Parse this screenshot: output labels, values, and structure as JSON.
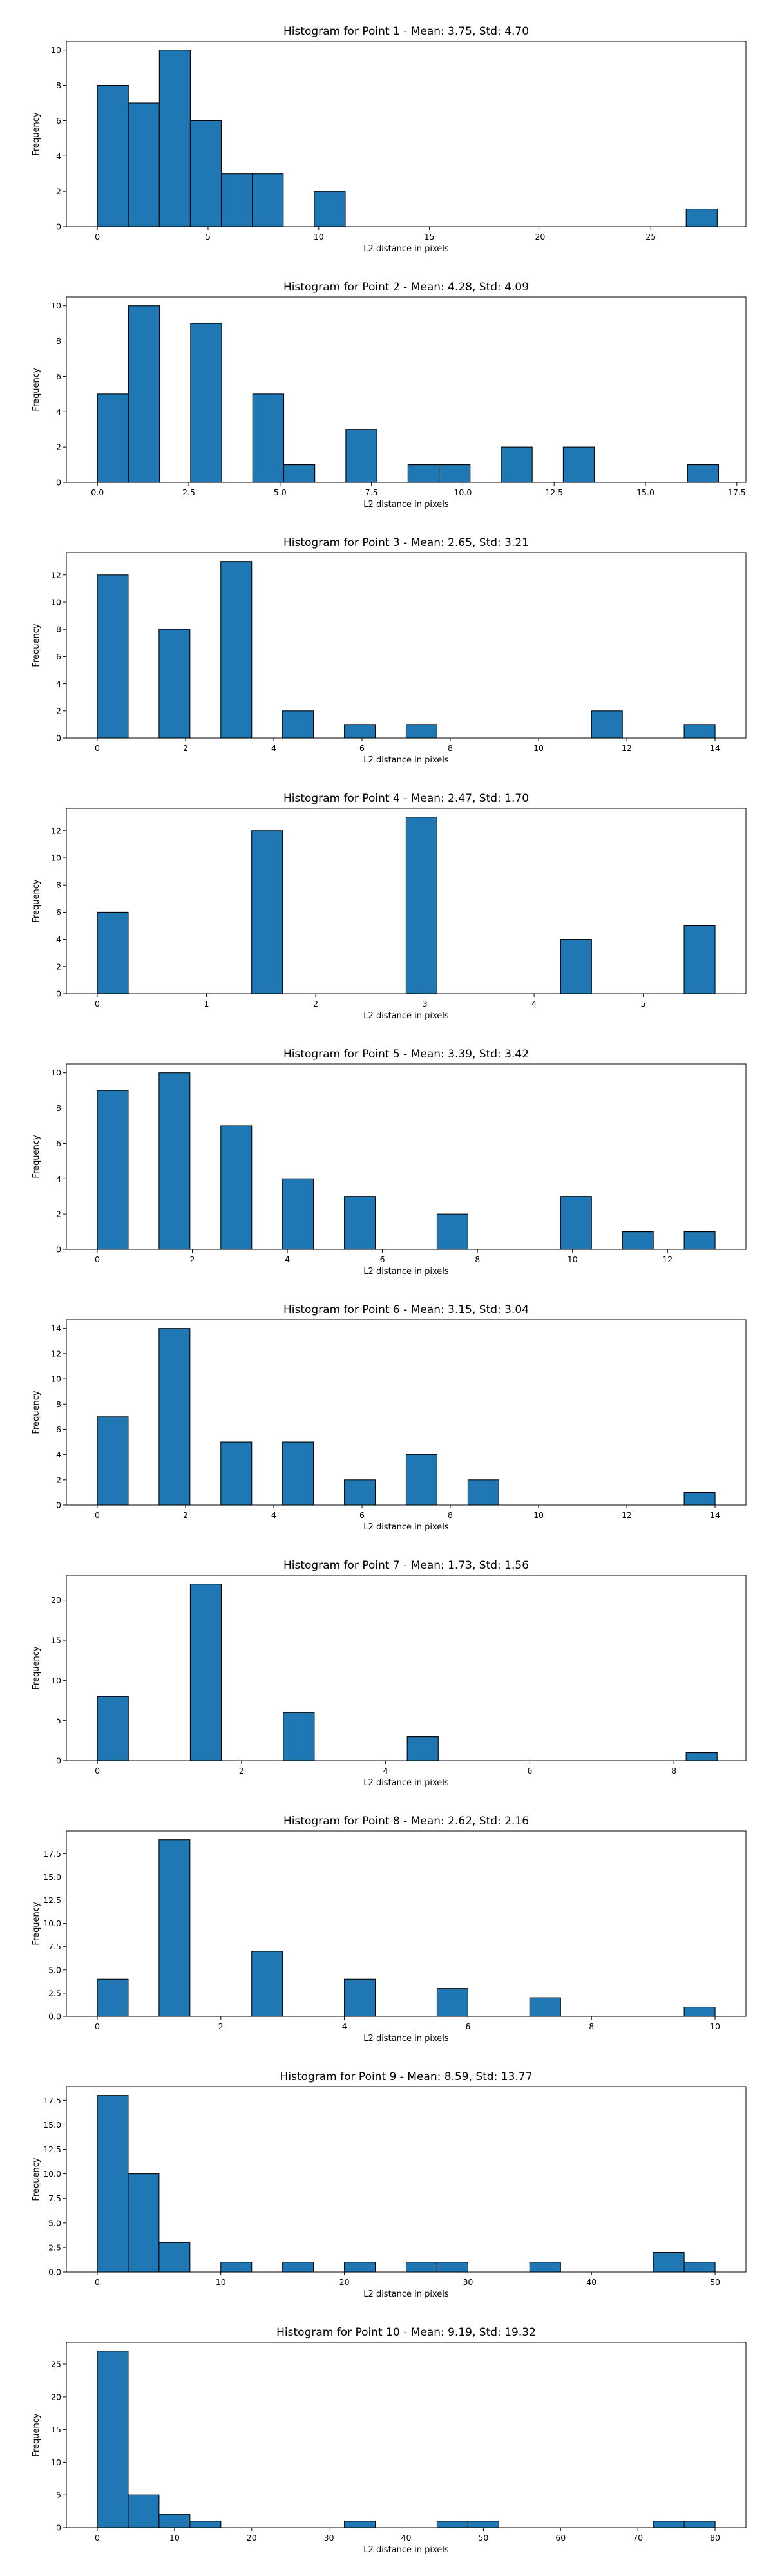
{
  "chart_data": [
    {
      "type": "bar",
      "title": "Histogram for Point 1 - Mean: 3.75, Std: 4.70",
      "xlabel": "L2 distance in pixels",
      "ylabel": "Frequency",
      "xlim": [
        -1.4,
        29.3
      ],
      "ylim": [
        0,
        10.5
      ],
      "xticks": [
        {
          "v": 0,
          "label": "0"
        },
        {
          "v": 5,
          "label": "5"
        },
        {
          "v": 10,
          "label": "10"
        },
        {
          "v": 15,
          "label": "15"
        },
        {
          "v": 20,
          "label": "20"
        },
        {
          "v": 25,
          "label": "25"
        }
      ],
      "yticks": [
        {
          "v": 0,
          "label": "0"
        },
        {
          "v": 2,
          "label": "2"
        },
        {
          "v": 4,
          "label": "4"
        },
        {
          "v": 6,
          "label": "6"
        },
        {
          "v": 8,
          "label": "8"
        },
        {
          "v": 10,
          "label": "10"
        }
      ],
      "bars": [
        {
          "x0": 0,
          "x1": 1.4,
          "value": 8
        },
        {
          "x0": 1.4,
          "x1": 2.8,
          "value": 7
        },
        {
          "x0": 2.8,
          "x1": 4.2,
          "value": 10
        },
        {
          "x0": 4.2,
          "x1": 5.6,
          "value": 6
        },
        {
          "x0": 5.6,
          "x1": 7.0,
          "value": 3
        },
        {
          "x0": 7.0,
          "x1": 8.4,
          "value": 3
        },
        {
          "x0": 9.8,
          "x1": 11.2,
          "value": 2
        },
        {
          "x0": 26.6,
          "x1": 28.0,
          "value": 1
        }
      ]
    },
    {
      "type": "bar",
      "title": "Histogram for Point 2 - Mean: 4.28, Std: 4.09",
      "xlabel": "L2 distance in pixels",
      "ylabel": "Frequency",
      "xlim": [
        -0.85,
        17.75
      ],
      "ylim": [
        0,
        10.5
      ],
      "xticks": [
        {
          "v": 0,
          "label": "0.0"
        },
        {
          "v": 2.5,
          "label": "2.5"
        },
        {
          "v": 5,
          "label": "5.0"
        },
        {
          "v": 7.5,
          "label": "7.5"
        },
        {
          "v": 10,
          "label": "10.0"
        },
        {
          "v": 12.5,
          "label": "12.5"
        },
        {
          "v": 15,
          "label": "15.0"
        },
        {
          "v": 17.5,
          "label": "17.5"
        }
      ],
      "yticks": [
        {
          "v": 0,
          "label": "0"
        },
        {
          "v": 2,
          "label": "2"
        },
        {
          "v": 4,
          "label": "4"
        },
        {
          "v": 6,
          "label": "6"
        },
        {
          "v": 8,
          "label": "8"
        },
        {
          "v": 10,
          "label": "10"
        }
      ],
      "bars": [
        {
          "x0": 0,
          "x1": 0.85,
          "value": 5
        },
        {
          "x0": 0.85,
          "x1": 1.7,
          "value": 10
        },
        {
          "x0": 2.55,
          "x1": 3.4,
          "value": 9
        },
        {
          "x0": 4.25,
          "x1": 5.1,
          "value": 5
        },
        {
          "x0": 5.1,
          "x1": 5.95,
          "value": 1
        },
        {
          "x0": 6.8,
          "x1": 7.65,
          "value": 3
        },
        {
          "x0": 8.5,
          "x1": 9.35,
          "value": 1
        },
        {
          "x0": 9.35,
          "x1": 10.2,
          "value": 1
        },
        {
          "x0": 11.05,
          "x1": 11.9,
          "value": 2
        },
        {
          "x0": 12.75,
          "x1": 13.6,
          "value": 2
        },
        {
          "x0": 16.15,
          "x1": 17.0,
          "value": 1
        }
      ]
    },
    {
      "type": "bar",
      "title": "Histogram for Point 3 - Mean: 2.65, Std: 3.21",
      "xlabel": "L2 distance in pixels",
      "ylabel": "Frequency",
      "xlim": [
        -0.7,
        14.7
      ],
      "ylim": [
        0,
        13.65
      ],
      "xticks": [
        {
          "v": 0,
          "label": "0"
        },
        {
          "v": 2,
          "label": "2"
        },
        {
          "v": 4,
          "label": "4"
        },
        {
          "v": 6,
          "label": "6"
        },
        {
          "v": 8,
          "label": "8"
        },
        {
          "v": 10,
          "label": "10"
        },
        {
          "v": 12,
          "label": "12"
        },
        {
          "v": 14,
          "label": "14"
        }
      ],
      "yticks": [
        {
          "v": 0,
          "label": "0"
        },
        {
          "v": 2,
          "label": "2"
        },
        {
          "v": 4,
          "label": "4"
        },
        {
          "v": 6,
          "label": "6"
        },
        {
          "v": 8,
          "label": "8"
        },
        {
          "v": 10,
          "label": "10"
        },
        {
          "v": 12,
          "label": "12"
        }
      ],
      "bars": [
        {
          "x0": 0,
          "x1": 0.7,
          "value": 12
        },
        {
          "x0": 1.4,
          "x1": 2.1,
          "value": 8
        },
        {
          "x0": 2.8,
          "x1": 3.5,
          "value": 13
        },
        {
          "x0": 4.2,
          "x1": 4.9,
          "value": 2
        },
        {
          "x0": 5.6,
          "x1": 6.3,
          "value": 1
        },
        {
          "x0": 7.0,
          "x1": 7.7,
          "value": 1
        },
        {
          "x0": 11.2,
          "x1": 11.9,
          "value": 2
        },
        {
          "x0": 13.3,
          "x1": 14.0,
          "value": 1
        }
      ]
    },
    {
      "type": "bar",
      "title": "Histogram for Point 4 - Mean: 2.47, Std: 1.70",
      "xlabel": "L2 distance in pixels",
      "ylabel": "Frequency",
      "xlim": [
        -0.283,
        5.94
      ],
      "ylim": [
        0,
        13.65
      ],
      "xticks": [
        {
          "v": 0,
          "label": "0"
        },
        {
          "v": 1,
          "label": "1"
        },
        {
          "v": 2,
          "label": "2"
        },
        {
          "v": 3,
          "label": "3"
        },
        {
          "v": 4,
          "label": "4"
        },
        {
          "v": 5,
          "label": "5"
        }
      ],
      "yticks": [
        {
          "v": 0,
          "label": "0"
        },
        {
          "v": 2,
          "label": "2"
        },
        {
          "v": 4,
          "label": "4"
        },
        {
          "v": 6,
          "label": "6"
        },
        {
          "v": 8,
          "label": "8"
        },
        {
          "v": 10,
          "label": "10"
        },
        {
          "v": 12,
          "label": "12"
        }
      ],
      "bars": [
        {
          "x0": 0,
          "x1": 0.283,
          "value": 6
        },
        {
          "x0": 1.414,
          "x1": 1.697,
          "value": 12
        },
        {
          "x0": 2.828,
          "x1": 3.111,
          "value": 13
        },
        {
          "x0": 4.243,
          "x1": 4.526,
          "value": 4
        },
        {
          "x0": 5.374,
          "x1": 5.657,
          "value": 5
        }
      ]
    },
    {
      "type": "bar",
      "title": "Histogram for Point 5 - Mean: 3.39, Std: 3.42",
      "xlabel": "L2 distance in pixels",
      "ylabel": "Frequency",
      "xlim": [
        -0.65,
        13.65
      ],
      "ylim": [
        0,
        10.5
      ],
      "xticks": [
        {
          "v": 0,
          "label": "0"
        },
        {
          "v": 2,
          "label": "2"
        },
        {
          "v": 4,
          "label": "4"
        },
        {
          "v": 6,
          "label": "6"
        },
        {
          "v": 8,
          "label": "8"
        },
        {
          "v": 10,
          "label": "10"
        },
        {
          "v": 12,
          "label": "12"
        }
      ],
      "yticks": [
        {
          "v": 0,
          "label": "0"
        },
        {
          "v": 2,
          "label": "2"
        },
        {
          "v": 4,
          "label": "4"
        },
        {
          "v": 6,
          "label": "6"
        },
        {
          "v": 8,
          "label": "8"
        },
        {
          "v": 10,
          "label": "10"
        }
      ],
      "bars": [
        {
          "x0": 0,
          "x1": 0.65,
          "value": 9
        },
        {
          "x0": 1.3,
          "x1": 1.95,
          "value": 10
        },
        {
          "x0": 2.6,
          "x1": 3.25,
          "value": 7
        },
        {
          "x0": 3.9,
          "x1": 4.55,
          "value": 4
        },
        {
          "x0": 5.2,
          "x1": 5.85,
          "value": 3
        },
        {
          "x0": 7.15,
          "x1": 7.8,
          "value": 2
        },
        {
          "x0": 9.75,
          "x1": 10.4,
          "value": 3
        },
        {
          "x0": 11.05,
          "x1": 11.7,
          "value": 1
        },
        {
          "x0": 12.35,
          "x1": 13.0,
          "value": 1
        }
      ]
    },
    {
      "type": "bar",
      "title": "Histogram for Point 6 - Mean: 3.15, Std: 3.04",
      "xlabel": "L2 distance in pixels",
      "ylabel": "Frequency",
      "xlim": [
        -0.7,
        14.7
      ],
      "ylim": [
        0,
        14.7
      ],
      "xticks": [
        {
          "v": 0,
          "label": "0"
        },
        {
          "v": 2,
          "label": "2"
        },
        {
          "v": 4,
          "label": "4"
        },
        {
          "v": 6,
          "label": "6"
        },
        {
          "v": 8,
          "label": "8"
        },
        {
          "v": 10,
          "label": "10"
        },
        {
          "v": 12,
          "label": "12"
        },
        {
          "v": 14,
          "label": "14"
        }
      ],
      "yticks": [
        {
          "v": 0,
          "label": "0"
        },
        {
          "v": 2,
          "label": "2"
        },
        {
          "v": 4,
          "label": "4"
        },
        {
          "v": 6,
          "label": "6"
        },
        {
          "v": 8,
          "label": "8"
        },
        {
          "v": 10,
          "label": "10"
        },
        {
          "v": 12,
          "label": "12"
        },
        {
          "v": 14,
          "label": "14"
        }
      ],
      "bars": [
        {
          "x0": 0,
          "x1": 0.7,
          "value": 7
        },
        {
          "x0": 1.4,
          "x1": 2.1,
          "value": 14
        },
        {
          "x0": 2.8,
          "x1": 3.5,
          "value": 5
        },
        {
          "x0": 4.2,
          "x1": 4.9,
          "value": 5
        },
        {
          "x0": 5.6,
          "x1": 6.3,
          "value": 2
        },
        {
          "x0": 7.0,
          "x1": 7.7,
          "value": 4
        },
        {
          "x0": 8.4,
          "x1": 9.1,
          "value": 2
        },
        {
          "x0": 13.3,
          "x1": 14.0,
          "value": 1
        }
      ]
    },
    {
      "type": "bar",
      "title": "Histogram for Point 7 - Mean: 1.73, Std: 1.56",
      "xlabel": "L2 distance in pixels",
      "ylabel": "Frequency",
      "xlim": [
        -0.43,
        9.0
      ],
      "ylim": [
        0,
        23.1
      ],
      "xticks": [
        {
          "v": 0,
          "label": "0"
        },
        {
          "v": 2,
          "label": "2"
        },
        {
          "v": 4,
          "label": "4"
        },
        {
          "v": 6,
          "label": "6"
        },
        {
          "v": 8,
          "label": "8"
        }
      ],
      "yticks": [
        {
          "v": 0,
          "label": "0"
        },
        {
          "v": 5,
          "label": "5"
        },
        {
          "v": 10,
          "label": "10"
        },
        {
          "v": 15,
          "label": "15"
        },
        {
          "v": 20,
          "label": "20"
        }
      ],
      "bars": [
        {
          "x0": 0,
          "x1": 0.43,
          "value": 8
        },
        {
          "x0": 1.29,
          "x1": 1.72,
          "value": 22
        },
        {
          "x0": 2.58,
          "x1": 3.01,
          "value": 6
        },
        {
          "x0": 4.3,
          "x1": 4.73,
          "value": 3
        },
        {
          "x0": 8.17,
          "x1": 8.6,
          "value": 1
        }
      ]
    },
    {
      "type": "bar",
      "title": "Histogram for Point 8 - Mean: 2.62, Std: 2.16",
      "xlabel": "L2 distance in pixels",
      "ylabel": "Frequency",
      "xlim": [
        -0.5,
        10.5
      ],
      "ylim": [
        0,
        19.95
      ],
      "xticks": [
        {
          "v": 0,
          "label": "0"
        },
        {
          "v": 2,
          "label": "2"
        },
        {
          "v": 4,
          "label": "4"
        },
        {
          "v": 6,
          "label": "6"
        },
        {
          "v": 8,
          "label": "8"
        },
        {
          "v": 10,
          "label": "10"
        }
      ],
      "yticks": [
        {
          "v": 0,
          "label": "0.0"
        },
        {
          "v": 2.5,
          "label": "2.5"
        },
        {
          "v": 5,
          "label": "5.0"
        },
        {
          "v": 7.5,
          "label": "7.5"
        },
        {
          "v": 10,
          "label": "10.0"
        },
        {
          "v": 12.5,
          "label": "12.5"
        },
        {
          "v": 15,
          "label": "15.0"
        },
        {
          "v": 17.5,
          "label": "17.5"
        }
      ],
      "bars": [
        {
          "x0": 0,
          "x1": 0.5,
          "value": 4
        },
        {
          "x0": 1.0,
          "x1": 1.5,
          "value": 19
        },
        {
          "x0": 2.5,
          "x1": 3.0,
          "value": 7
        },
        {
          "x0": 4.0,
          "x1": 4.5,
          "value": 4
        },
        {
          "x0": 5.5,
          "x1": 6.0,
          "value": 3
        },
        {
          "x0": 7.0,
          "x1": 7.5,
          "value": 2
        },
        {
          "x0": 9.5,
          "x1": 10.0,
          "value": 1
        }
      ]
    },
    {
      "type": "bar",
      "title": "Histogram for Point 9 - Mean: 8.59, Std: 13.77",
      "xlabel": "L2 distance in pixels",
      "ylabel": "Frequency",
      "xlim": [
        -2.5,
        52.5
      ],
      "ylim": [
        0,
        18.9
      ],
      "xticks": [
        {
          "v": 0,
          "label": "0"
        },
        {
          "v": 10,
          "label": "10"
        },
        {
          "v": 20,
          "label": "20"
        },
        {
          "v": 30,
          "label": "30"
        },
        {
          "v": 40,
          "label": "40"
        },
        {
          "v": 50,
          "label": "50"
        }
      ],
      "yticks": [
        {
          "v": 0,
          "label": "0.0"
        },
        {
          "v": 2.5,
          "label": "2.5"
        },
        {
          "v": 5,
          "label": "5.0"
        },
        {
          "v": 7.5,
          "label": "7.5"
        },
        {
          "v": 10,
          "label": "10.0"
        },
        {
          "v": 12.5,
          "label": "12.5"
        },
        {
          "v": 15,
          "label": "15.0"
        },
        {
          "v": 17.5,
          "label": "17.5"
        }
      ],
      "bars": [
        {
          "x0": 0,
          "x1": 2.5,
          "value": 18
        },
        {
          "x0": 2.5,
          "x1": 5.0,
          "value": 10
        },
        {
          "x0": 5.0,
          "x1": 7.5,
          "value": 3
        },
        {
          "x0": 10.0,
          "x1": 12.5,
          "value": 1
        },
        {
          "x0": 15.0,
          "x1": 17.5,
          "value": 1
        },
        {
          "x0": 20.0,
          "x1": 22.5,
          "value": 1
        },
        {
          "x0": 25.0,
          "x1": 27.5,
          "value": 1
        },
        {
          "x0": 27.5,
          "x1": 30.0,
          "value": 1
        },
        {
          "x0": 35.0,
          "x1": 37.5,
          "value": 1
        },
        {
          "x0": 45.0,
          "x1": 47.5,
          "value": 2
        },
        {
          "x0": 47.5,
          "x1": 50.0,
          "value": 1
        }
      ]
    },
    {
      "type": "bar",
      "title": "Histogram for Point 10 - Mean: 9.19, Std: 19.32",
      "xlabel": "L2 distance in pixels",
      "ylabel": "Frequency",
      "xlim": [
        -4.0,
        84.0
      ],
      "ylim": [
        0,
        28.35
      ],
      "xticks": [
        {
          "v": 0,
          "label": "0"
        },
        {
          "v": 10,
          "label": "10"
        },
        {
          "v": 20,
          "label": "20"
        },
        {
          "v": 30,
          "label": "30"
        },
        {
          "v": 40,
          "label": "40"
        },
        {
          "v": 50,
          "label": "50"
        },
        {
          "v": 60,
          "label": "60"
        },
        {
          "v": 70,
          "label": "70"
        },
        {
          "v": 80,
          "label": "80"
        }
      ],
      "yticks": [
        {
          "v": 0,
          "label": "0"
        },
        {
          "v": 5,
          "label": "5"
        },
        {
          "v": 10,
          "label": "10"
        },
        {
          "v": 15,
          "label": "15"
        },
        {
          "v": 20,
          "label": "20"
        },
        {
          "v": 25,
          "label": "25"
        }
      ],
      "bars": [
        {
          "x0": 0,
          "x1": 4,
          "value": 27
        },
        {
          "x0": 4,
          "x1": 8,
          "value": 5
        },
        {
          "x0": 8,
          "x1": 12,
          "value": 2
        },
        {
          "x0": 12,
          "x1": 16,
          "value": 1
        },
        {
          "x0": 32,
          "x1": 36,
          "value": 1
        },
        {
          "x0": 44,
          "x1": 48,
          "value": 1
        },
        {
          "x0": 48,
          "x1": 52,
          "value": 1
        },
        {
          "x0": 72,
          "x1": 76,
          "value": 1
        },
        {
          "x0": 76,
          "x1": 80,
          "value": 1
        }
      ]
    }
  ]
}
